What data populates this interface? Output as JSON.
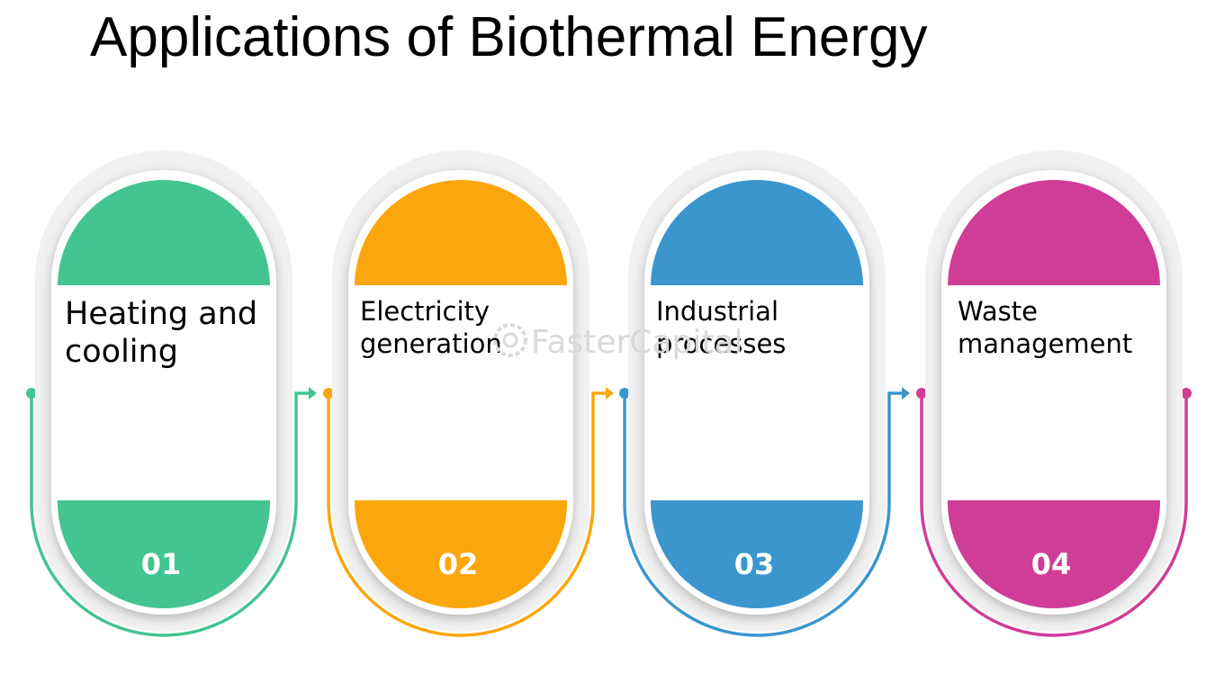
{
  "title": "Applications of Biothermal Energy",
  "watermark": "FasterCapital",
  "steps": [
    {
      "number": "01",
      "lines": [
        "Heating and",
        "cooling"
      ],
      "color": "#43c491"
    },
    {
      "number": "02",
      "lines": [
        "Electricity",
        "generation"
      ],
      "color": "#fba60c"
    },
    {
      "number": "03",
      "lines": [
        "Industrial",
        "processes"
      ],
      "color": "#3b96ce"
    },
    {
      "number": "04",
      "lines": [
        "Waste",
        "management"
      ],
      "color": "#cf3d97"
    }
  ]
}
